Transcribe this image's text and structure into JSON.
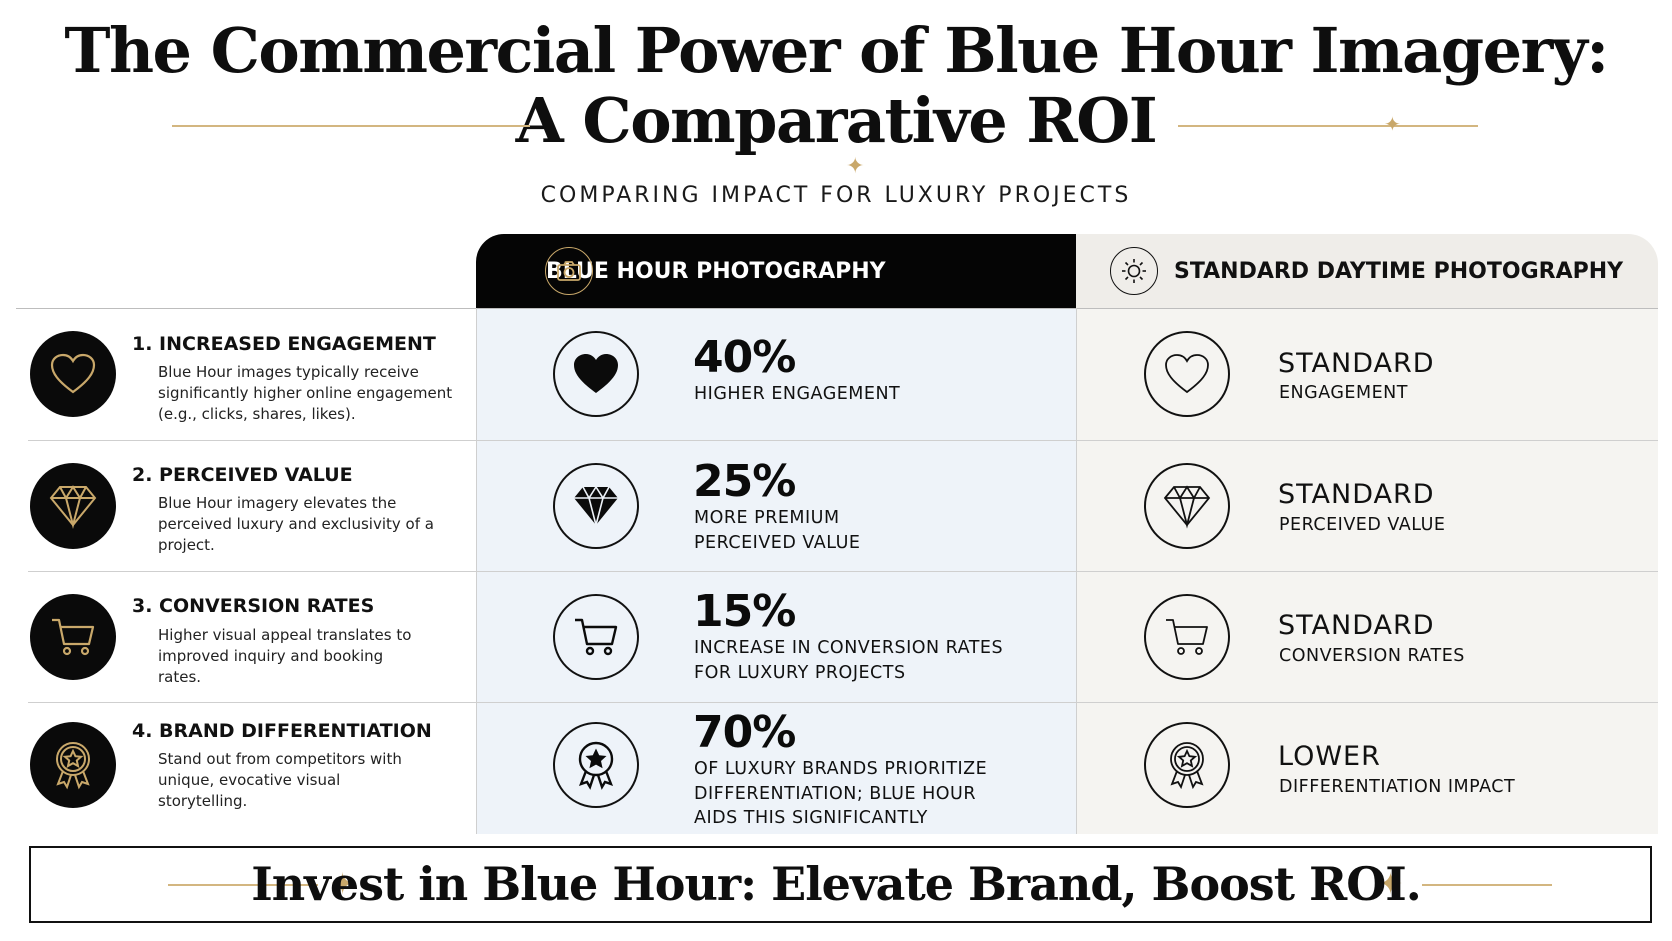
{
  "title": {
    "line1": "The Commercial Power of Blue Hour Imagery:",
    "line2": "A Comparative ROI",
    "subtitle": "COMPARING IMPACT FOR LUXURY PROJECTS"
  },
  "columns": {
    "blue_hour": {
      "label": "BLUE HOUR PHOTOGRAPHY",
      "icon": "camera-icon"
    },
    "standard": {
      "label": "STANDARD DAYTIME PHOTOGRAPHY",
      "icon": "sun-icon"
    }
  },
  "rows": [
    {
      "title": "1. INCREASED ENGAGEMENT",
      "description": "Blue Hour images typically receive significantly higher online engagement (e.g., clicks, shares, likes).",
      "icon": "heart-icon",
      "blue_value": "40%",
      "blue_caption": "HIGHER ENGAGEMENT",
      "std_value": "STANDARD",
      "std_caption": "ENGAGEMENT"
    },
    {
      "title": "2. PERCEIVED VALUE",
      "description": "Blue Hour imagery elevates the perceived luxury and exclusivity of a project.",
      "icon": "diamond-icon",
      "blue_value": "25%",
      "blue_caption": "MORE PREMIUM PERCEIVED VALUE",
      "std_value": "STANDARD",
      "std_caption": "PERCEIVED VALUE"
    },
    {
      "title": "3. CONVERSION RATES",
      "description": "Higher visual appeal translates to improved inquiry and booking rates.",
      "icon": "cart-icon",
      "blue_value": "15%",
      "blue_caption": "INCREASE IN CONVERSION RATES FOR LUXURY PROJECTS",
      "std_value": "STANDARD",
      "std_caption": "CONVERSION RATES"
    },
    {
      "title": "4. BRAND DIFFERENTIATION",
      "description": "Stand out from competitors with unique, evocative visual storytelling.",
      "icon": "award-star-icon",
      "blue_value": "70%",
      "blue_caption": "OF LUXURY BRANDS PRIORITIZE DIFFERENTIATION; BLUE HOUR AIDS THIS SIGNIFICANTLY",
      "std_value": "LOWER",
      "std_caption": "DIFFERENTIATION IMPACT"
    }
  ],
  "footer": {
    "text": "Invest in Blue Hour: Elevate Brand, Boost ROI."
  },
  "colors": {
    "accent_gold": "#c9a86a",
    "black": "#0a0a0a",
    "blue_column_bg": "#eef3f9",
    "standard_column_bg": "#f5f4f1"
  }
}
